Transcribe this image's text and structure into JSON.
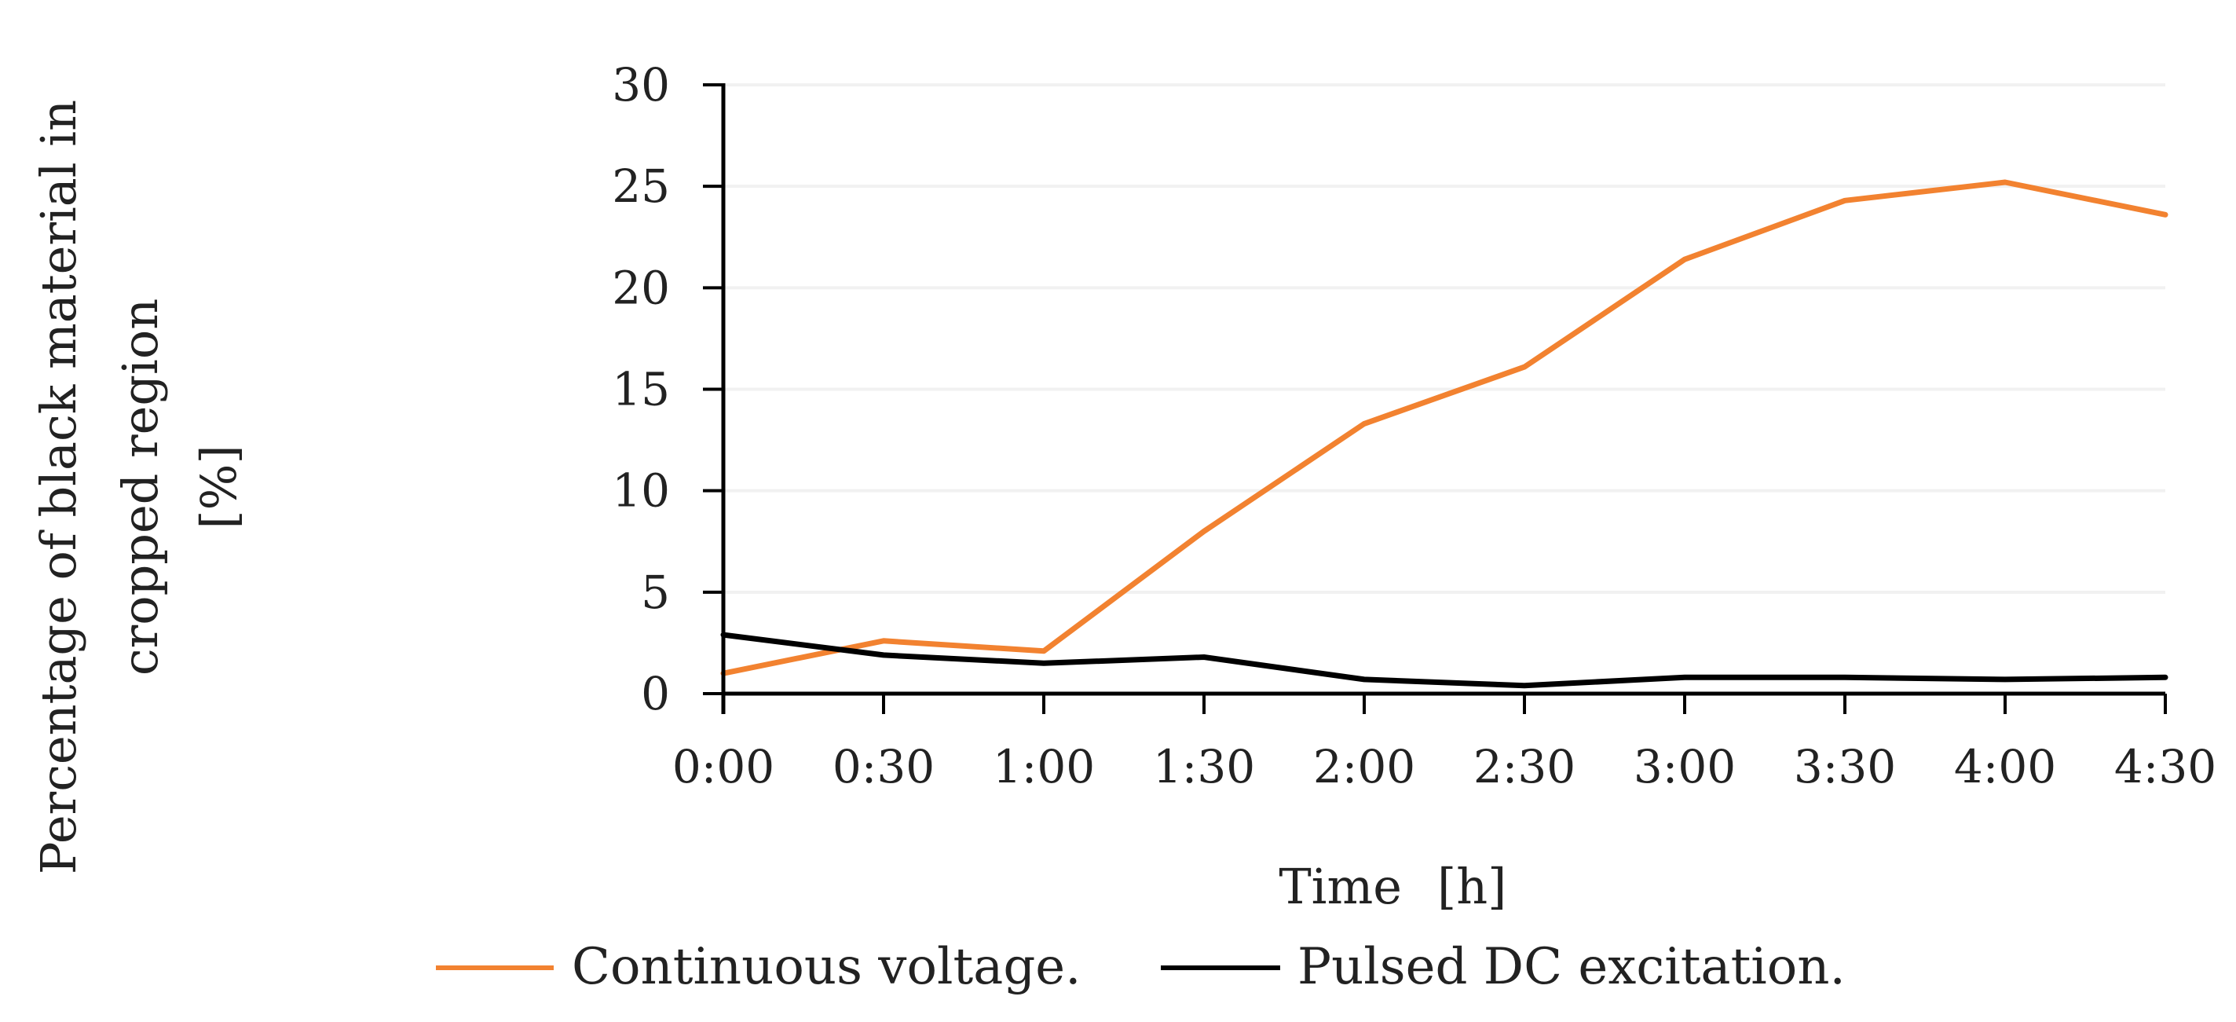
{
  "chart_data": {
    "type": "line",
    "title": "",
    "xlabel": "Time",
    "xlabel_unit": "[h]",
    "ylabel_lines": [
      "Percentage of black material in",
      "cropped region",
      "[%]"
    ],
    "categories": [
      "0:00",
      "0:30",
      "1:00",
      "1:30",
      "2:00",
      "2:30",
      "3:00",
      "3:30",
      "4:00",
      "4:30"
    ],
    "y_ticks": [
      0,
      5,
      10,
      15,
      20,
      25,
      30
    ],
    "ylim": [
      0,
      30
    ],
    "grid": "horizontal",
    "legend_position": "bottom",
    "series": [
      {
        "name": "Continuous voltage.",
        "color": "#F28230",
        "values": [
          1.0,
          2.6,
          2.1,
          8.0,
          13.3,
          16.1,
          21.4,
          24.3,
          25.2,
          23.6
        ]
      },
      {
        "name": "Pulsed DC excitation.",
        "color": "#000000",
        "values": [
          2.9,
          1.9,
          1.5,
          1.8,
          0.7,
          0.4,
          0.8,
          0.8,
          0.7,
          0.8
        ]
      }
    ]
  }
}
